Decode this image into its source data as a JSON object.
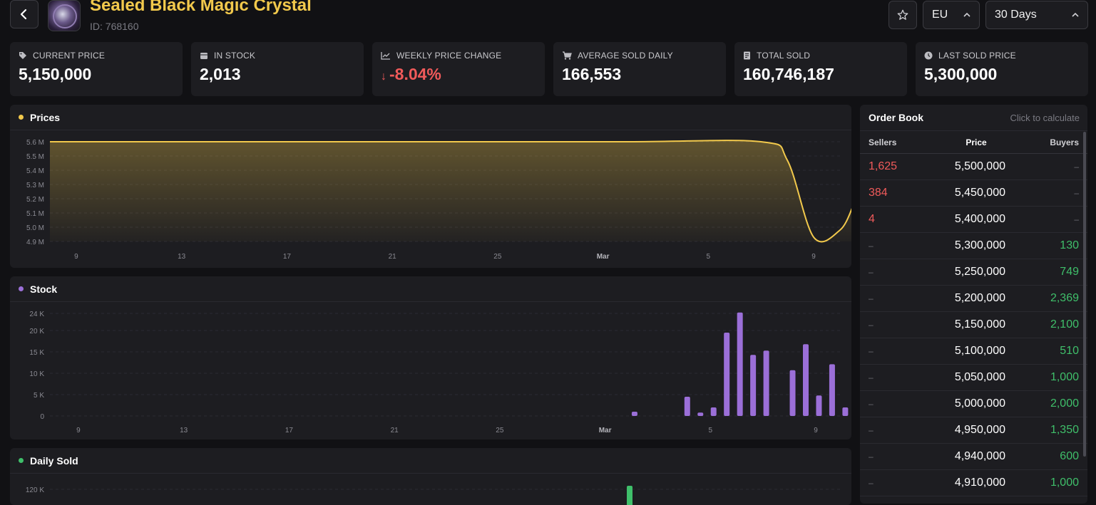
{
  "header": {
    "title": "Sealed Black Magic Crystal",
    "id_label": "ID: 768160",
    "region": "EU",
    "period": "30 Days"
  },
  "stats": [
    {
      "icon": "tag-icon",
      "label": "CURRENT PRICE",
      "value": "5,150,000"
    },
    {
      "icon": "box-icon",
      "label": "IN STOCK",
      "value": "2,013"
    },
    {
      "icon": "trend-icon",
      "label": "WEEKLY PRICE CHANGE",
      "value": "-8.04%",
      "arrow": "↓"
    },
    {
      "icon": "cart-icon",
      "label": "AVERAGE SOLD DAILY",
      "value": "166,553"
    },
    {
      "icon": "receipt-icon",
      "label": "TOTAL SOLD",
      "value": "160,746,187"
    },
    {
      "icon": "clock-icon",
      "label": "LAST SOLD PRICE",
      "value": "5,300,000"
    }
  ],
  "colors": {
    "prices": "#f2c94c",
    "stock": "#9b6fd8",
    "sold": "#3fbf6a",
    "negative": "#f05a5a"
  },
  "chart_data": [
    {
      "type": "area",
      "title": "Prices",
      "y_ticks": [
        "5.6 M",
        "5.5 M",
        "5.4 M",
        "5.3 M",
        "5.2 M",
        "5.1 M",
        "5.0 M",
        "4.9 M"
      ],
      "x_ticks": [
        "9",
        "13",
        "17",
        "21",
        "25",
        "Mar",
        "5",
        "9"
      ],
      "ylim": [
        4.9,
        5.6
      ],
      "x": [
        "Feb 8",
        "Feb 15",
        "Feb 22",
        "Mar 1",
        "Mar 6",
        "Mar 7",
        "Mar 8",
        "Mar 9",
        "Mar 9.5"
      ],
      "values": [
        5.6,
        5.6,
        5.6,
        5.6,
        5.6,
        5.47,
        4.93,
        4.98,
        5.15
      ]
    },
    {
      "type": "bar",
      "title": "Stock",
      "y_ticks": [
        "24 K",
        "20 K",
        "15 K",
        "10 K",
        "5 K",
        "0"
      ],
      "x_ticks": [
        "9",
        "13",
        "17",
        "21",
        "25",
        "Mar",
        "5",
        "9"
      ],
      "ylim": [
        0,
        24
      ],
      "categories": [
        "Mar 1",
        "Mar 3",
        "Mar 3.5",
        "Mar 4",
        "Mar 4.5",
        "Mar 5",
        "Mar 5.5",
        "Mar 6",
        "Mar 7",
        "Mar 7.5",
        "Mar 8",
        "Mar 8.5",
        "Mar 9"
      ],
      "values": [
        1,
        4.5,
        0.8,
        2,
        19.5,
        24.2,
        14.3,
        15.3,
        10.7,
        16.8,
        4.8,
        12.1,
        2
      ]
    },
    {
      "type": "bar",
      "title": "Daily Sold",
      "y_ticks": [
        "120 K"
      ]
    }
  ],
  "orderbook": {
    "title": "Order Book",
    "hint": "Click to calculate",
    "cols": {
      "sellers": "Sellers",
      "price": "Price",
      "buyers": "Buyers"
    },
    "rows": [
      {
        "sellers": "1,625",
        "price": "5,500,000",
        "buyers": "–"
      },
      {
        "sellers": "384",
        "price": "5,450,000",
        "buyers": "–"
      },
      {
        "sellers": "4",
        "price": "5,400,000",
        "buyers": "–"
      },
      {
        "sellers": "–",
        "price": "5,300,000",
        "buyers": "130"
      },
      {
        "sellers": "–",
        "price": "5,250,000",
        "buyers": "749"
      },
      {
        "sellers": "–",
        "price": "5,200,000",
        "buyers": "2,369"
      },
      {
        "sellers": "–",
        "price": "5,150,000",
        "buyers": "2,100"
      },
      {
        "sellers": "–",
        "price": "5,100,000",
        "buyers": "510"
      },
      {
        "sellers": "–",
        "price": "5,050,000",
        "buyers": "1,000"
      },
      {
        "sellers": "–",
        "price": "5,000,000",
        "buyers": "2,000"
      },
      {
        "sellers": "–",
        "price": "4,950,000",
        "buyers": "1,350"
      },
      {
        "sellers": "–",
        "price": "4,940,000",
        "buyers": "600"
      },
      {
        "sellers": "–",
        "price": "4,910,000",
        "buyers": "1,000"
      }
    ]
  }
}
